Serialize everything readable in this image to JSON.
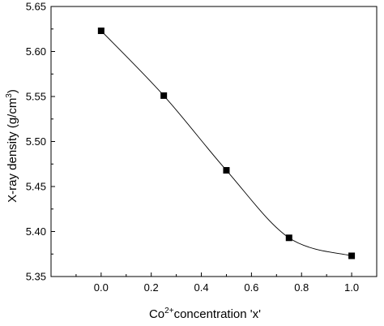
{
  "chart_data": {
    "type": "scatter",
    "title": "",
    "xlabel": {
      "base": "Co",
      "sup": "2+",
      "rest": "concentration 'x'"
    },
    "ylabel": {
      "base": "X-ray density (g/cm",
      "sup": "3",
      "rest": ")"
    },
    "xlim": [
      -0.2,
      1.1
    ],
    "ylim": [
      5.35,
      5.65
    ],
    "xticks": [
      0.0,
      0.2,
      0.4,
      0.6,
      0.8,
      1.0
    ],
    "xtick_labels": [
      "0.0",
      "0.2",
      "0.4",
      "0.6",
      "0.8",
      "1.0"
    ],
    "yticks": [
      5.35,
      5.4,
      5.45,
      5.5,
      5.55,
      5.6,
      5.65
    ],
    "ytick_labels": [
      "5.35",
      "5.40",
      "5.45",
      "5.50",
      "5.55",
      "5.60",
      "5.65"
    ],
    "grid": false,
    "legend": "none",
    "marker": "square",
    "fit_line": "smooth",
    "color": "#000000",
    "series": [
      {
        "x": [
          0.0,
          0.25,
          0.5,
          0.75,
          1.0
        ],
        "y": [
          5.623,
          5.551,
          5.468,
          5.393,
          5.373
        ]
      }
    ]
  }
}
